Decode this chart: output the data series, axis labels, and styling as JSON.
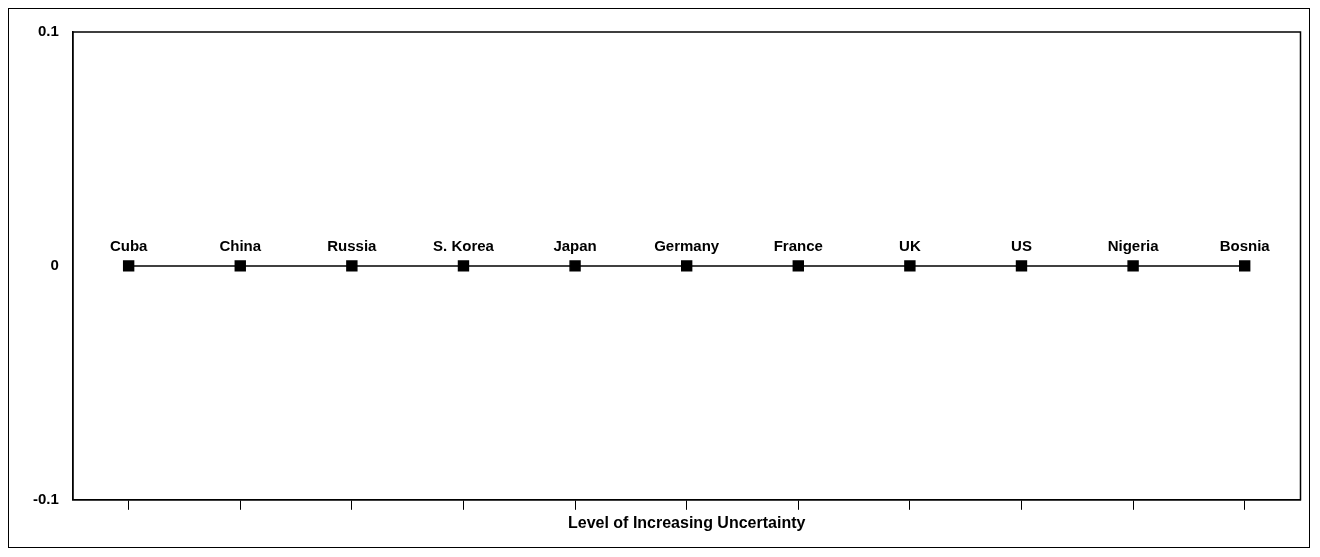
{
  "chart_data": {
    "type": "line",
    "xlabel": "Level of Increasing Uncertainty",
    "categories": [
      "Cuba",
      "China",
      "Russia",
      "S. Korea",
      "Japan",
      "Germany",
      "France",
      "UK",
      "US",
      "Nigeria",
      "Bosnia"
    ],
    "values": [
      0,
      0,
      0,
      0,
      0,
      0,
      0,
      0,
      0,
      0,
      0
    ],
    "color": "#000000",
    "marker": "square",
    "line_style": "solid",
    "ylim": [
      -0.1,
      0.1
    ],
    "yticks": [
      -0.1,
      0,
      0.1
    ],
    "grid": false,
    "legend": false
  }
}
